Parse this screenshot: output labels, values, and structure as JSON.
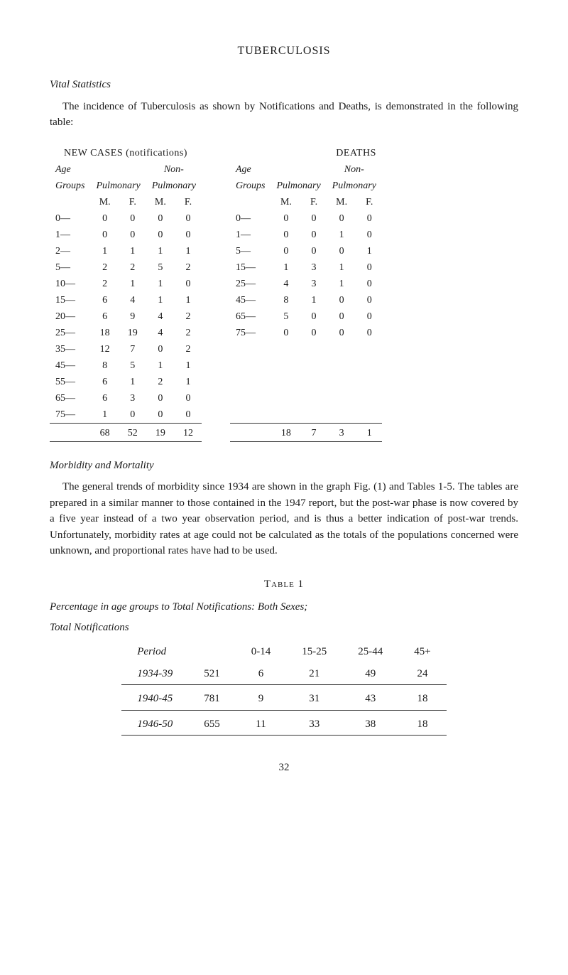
{
  "title": "TUBERCULOSIS",
  "vital_stats_heading": "Vital Statistics",
  "intro_para": "The incidence of Tuberculosis as shown by Notifications and Deaths, is demonstrated in the following table:",
  "new_cases_heading": "NEW CASES (notifications)",
  "deaths_heading": "DEATHS",
  "labels": {
    "age": "Age",
    "groups": "Groups",
    "pulmonary": "Pulmonary",
    "non": "Non-",
    "m": "M.",
    "f": "F."
  },
  "new_cases": {
    "age_groups": [
      "0—",
      "1—",
      "2—",
      "5—",
      "10—",
      "15—",
      "20—",
      "25—",
      "35—",
      "45—",
      "55—",
      "65—",
      "75—"
    ],
    "pulmonary_m": [
      0,
      0,
      1,
      2,
      2,
      6,
      6,
      18,
      12,
      8,
      6,
      6,
      1
    ],
    "pulmonary_f": [
      0,
      0,
      1,
      2,
      1,
      4,
      9,
      19,
      7,
      5,
      1,
      3,
      0
    ],
    "nonpulm_m": [
      0,
      0,
      1,
      5,
      1,
      1,
      4,
      4,
      0,
      1,
      2,
      0,
      0
    ],
    "nonpulm_f": [
      0,
      0,
      1,
      2,
      0,
      1,
      2,
      2,
      2,
      1,
      1,
      0,
      0
    ],
    "totals": {
      "pulm_m": 68,
      "pulm_f": 52,
      "np_m": 19,
      "np_f": 12
    }
  },
  "deaths": {
    "age_groups": [
      "0—",
      "1—",
      "5—",
      "15—",
      "25—",
      "45—",
      "65—",
      "75—"
    ],
    "pulmonary_m": [
      0,
      0,
      0,
      1,
      4,
      8,
      5,
      0
    ],
    "pulmonary_f": [
      0,
      0,
      0,
      3,
      3,
      1,
      0,
      0
    ],
    "nonpulm_m": [
      0,
      1,
      0,
      1,
      1,
      0,
      0,
      0
    ],
    "nonpulm_f": [
      0,
      0,
      1,
      0,
      0,
      0,
      0,
      0
    ],
    "totals": {
      "pulm_m": 18,
      "pulm_f": 7,
      "np_m": 3,
      "np_f": 1
    }
  },
  "morbidity_heading": "Morbidity and Mortality",
  "morbidity_para": "The general trends of morbidity since 1934 are shown in the graph Fig. (1) and Tables 1-5. The tables are prepared in a similar manner to those contained in the 1947 report, but the post-war phase is now covered by a five year instead of a two year observation period, and is thus a better indication of post-war trends. Unfortunately, morbidity rates at age could not be calculated as the totals of the populations concerned were unknown, and proportional rates have had to be used.",
  "table1_title": "Table 1",
  "table1_caption": "Percentage in age groups to Total Notifications: Both Sexes;",
  "table1_subcaption": "Total Notifications",
  "table1": {
    "period_label": "Period",
    "cols": [
      "0-14",
      "15-25",
      "25-44",
      "45+"
    ],
    "rows": [
      {
        "period": "1934-39",
        "total": 521,
        "values": [
          6,
          21,
          49,
          24
        ]
      },
      {
        "period": "1940-45",
        "total": 781,
        "values": [
          9,
          31,
          43,
          18
        ]
      },
      {
        "period": "1946-50",
        "total": 655,
        "values": [
          11,
          33,
          38,
          18
        ]
      }
    ]
  },
  "page_number": "32"
}
